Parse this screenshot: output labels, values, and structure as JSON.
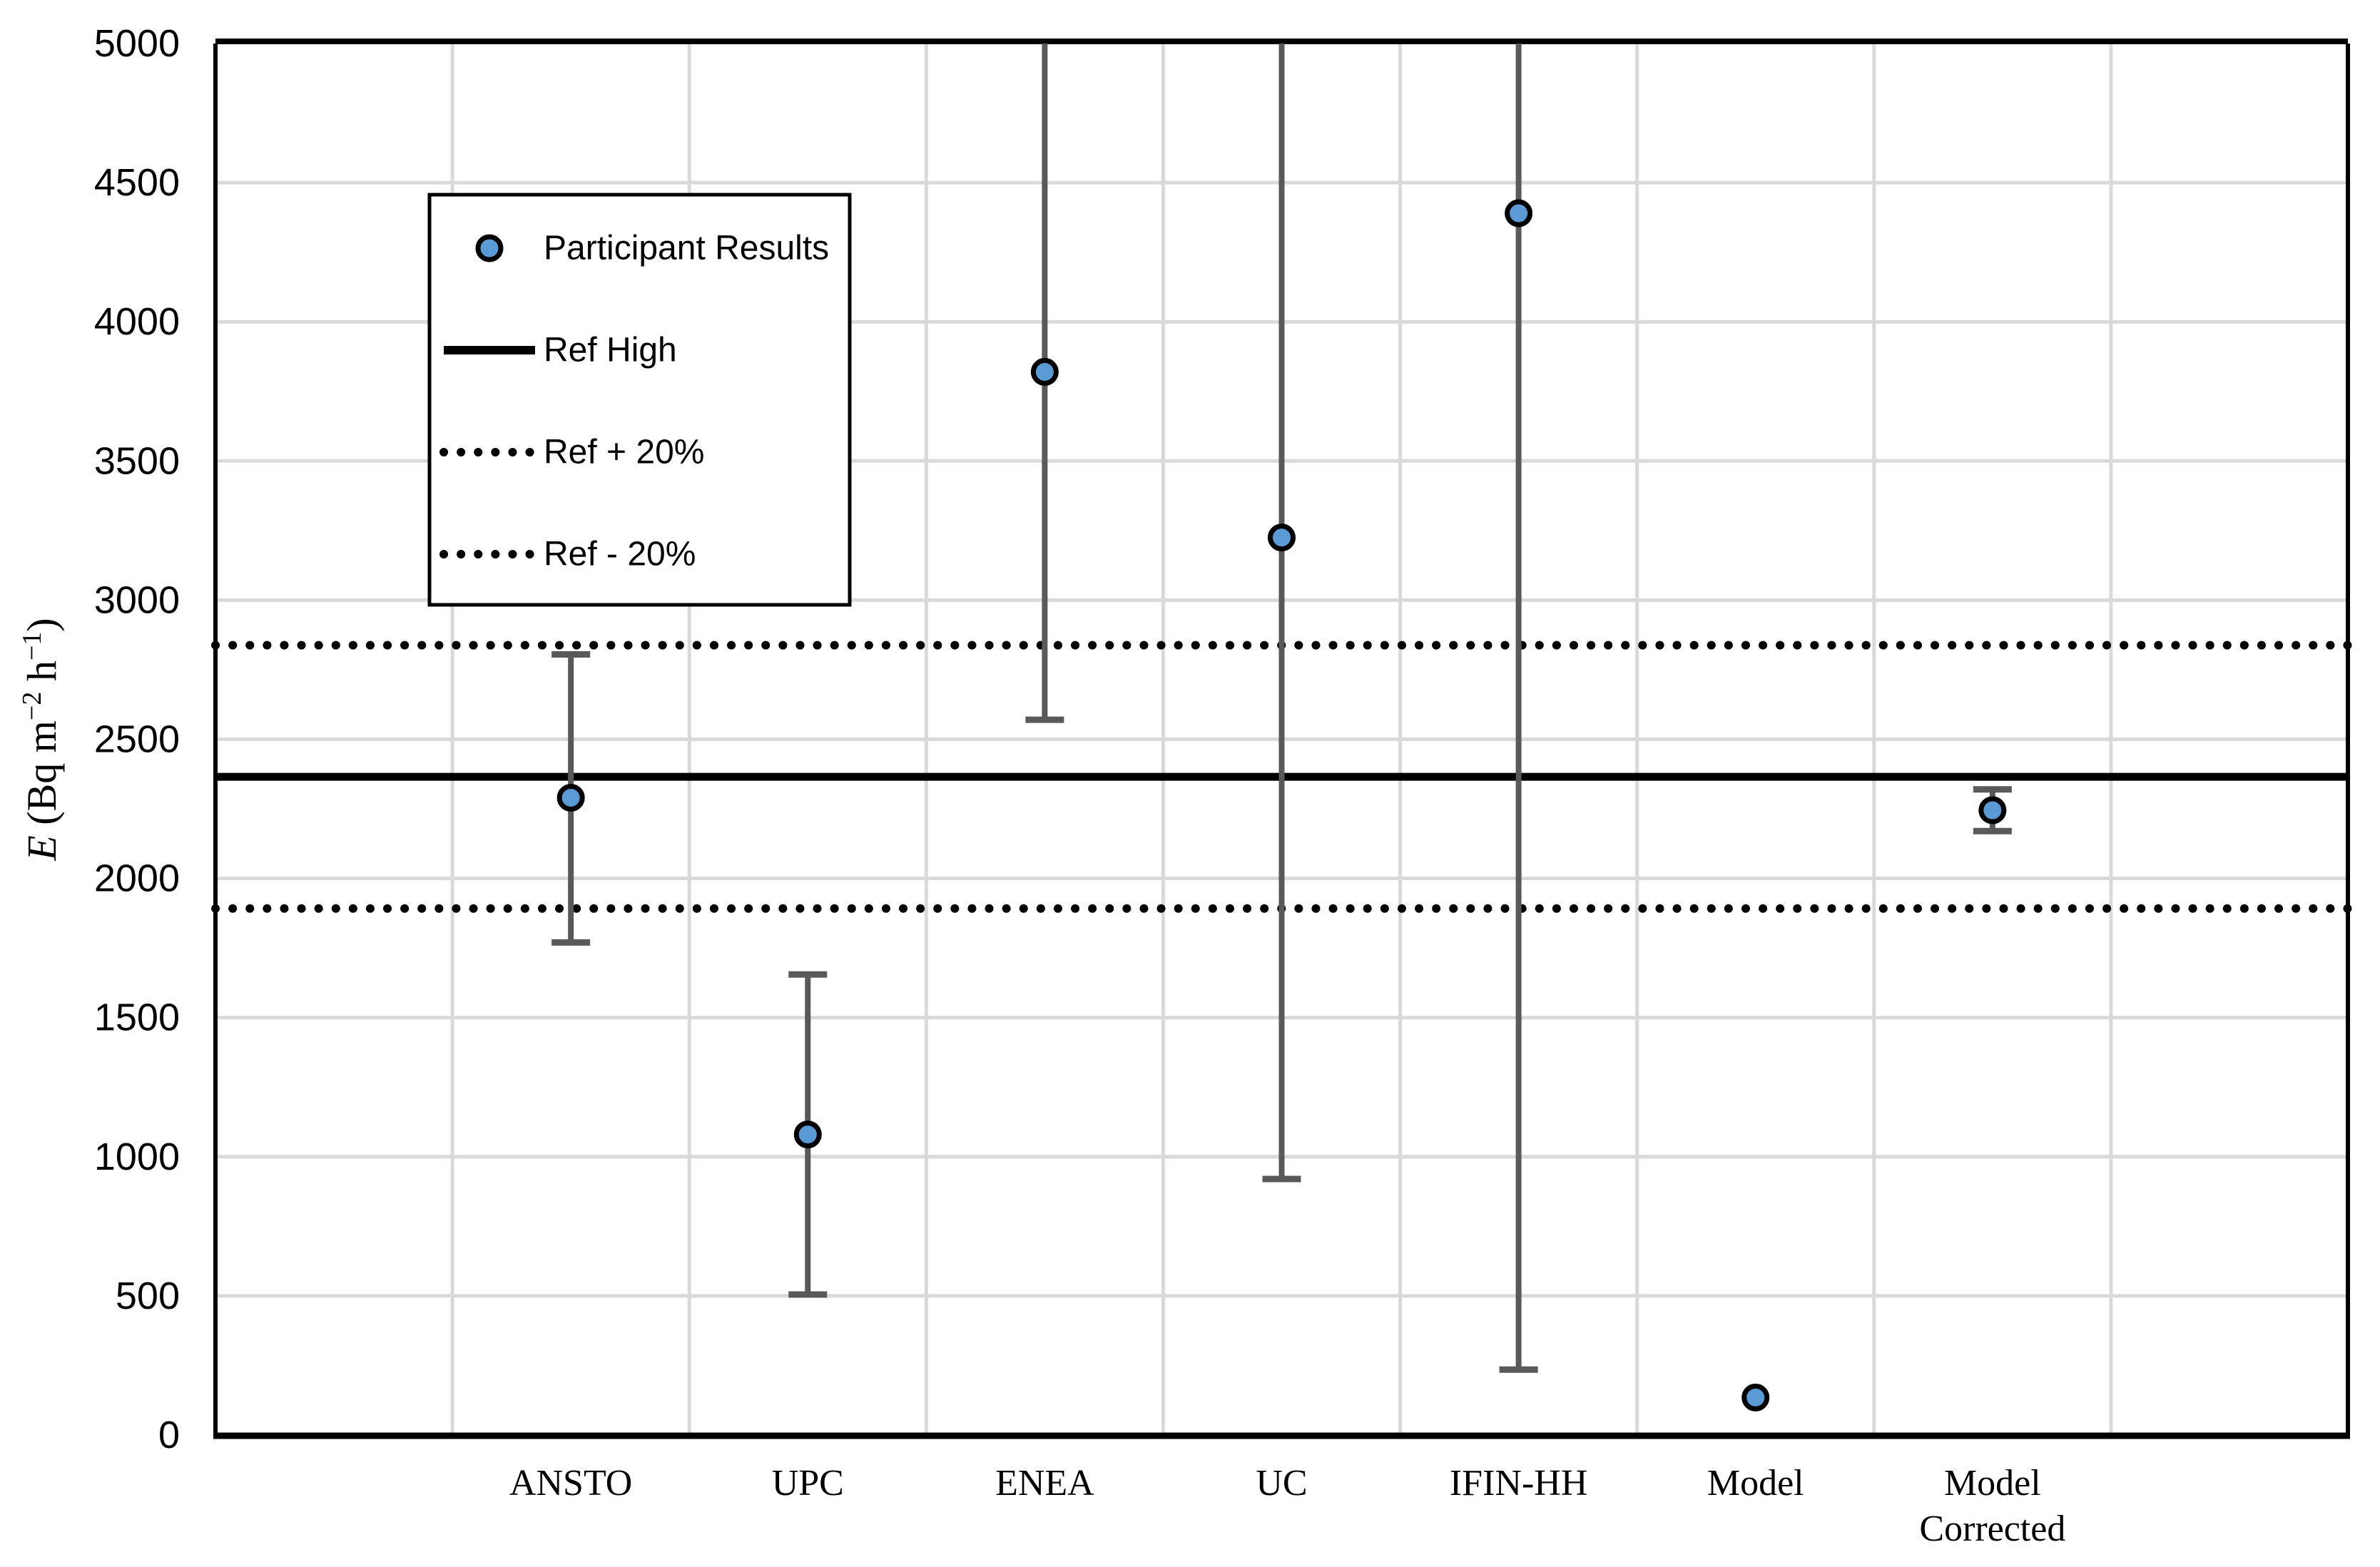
{
  "chart_data": {
    "type": "scatter",
    "title": "",
    "xlabel": "",
    "ylabel_parts": [
      {
        "t": "E",
        "italic": true
      },
      {
        "t": " (Bq m",
        "italic": false
      },
      {
        "t": "−2",
        "sup": true
      },
      {
        "t": " h",
        "italic": false
      },
      {
        "t": "−1",
        "sup": true
      },
      {
        "t": ")",
        "italic": false
      }
    ],
    "ylim": [
      0,
      5000
    ],
    "ytick_step": 500,
    "yticks": [
      "0",
      "500",
      "1000",
      "1500",
      "2000",
      "2500",
      "3000",
      "3500",
      "4000",
      "4500",
      "5000"
    ],
    "grid": "both",
    "categories": [
      "ANSTO",
      "UPC",
      "ENEA",
      "UC",
      "IFIN-HH",
      "Model",
      "Model\nCorrected"
    ],
    "series": [
      {
        "name": "Participant Results",
        "points": [
          {
            "category": "ANSTO",
            "value": 2290,
            "err_low": 1770,
            "err_high": 2805,
            "err_high_offscale": false
          },
          {
            "category": "UPC",
            "value": 1080,
            "err_low": 505,
            "err_high": 1655,
            "err_high_offscale": false
          },
          {
            "category": "ENEA",
            "value": 3820,
            "err_low": 2570,
            "err_high": null,
            "err_high_offscale": true
          },
          {
            "category": "UC",
            "value": 3225,
            "err_low": 920,
            "err_high": null,
            "err_high_offscale": true
          },
          {
            "category": "IFIN-HH",
            "value": 4390,
            "err_low": 235,
            "err_high": null,
            "err_high_offscale": true
          },
          {
            "category": "Model",
            "value": 135,
            "err_low": null,
            "err_high": null,
            "err_high_offscale": false
          },
          {
            "category": "Model\nCorrected",
            "value": 2245,
            "err_low": 2170,
            "err_high": 2320,
            "err_high_offscale": false
          }
        ]
      }
    ],
    "reference_lines": [
      {
        "label": "Ref High",
        "value": 2365,
        "style": "solid"
      },
      {
        "label": "Ref + 20%",
        "value": 2838,
        "style": "dotted"
      },
      {
        "label": "Ref - 20%",
        "value": 1892,
        "style": "dotted"
      }
    ],
    "legend": {
      "position": "upper-left-inside",
      "items": [
        {
          "label": "Participant Results",
          "sample": "marker"
        },
        {
          "label": "Ref High",
          "sample": "solid-line"
        },
        {
          "label": "Ref + 20%",
          "sample": "dotted-line"
        },
        {
          "label": "Ref - 20%",
          "sample": "dotted-line"
        }
      ]
    },
    "colors": {
      "marker_fill": "#5B9BD5",
      "marker_stroke": "#000000",
      "error_bar": "#595959",
      "gridline": "#D9D9D9",
      "axis": "#000000",
      "reference_line": "#000000",
      "background": "#FFFFFF",
      "text": "#000000"
    }
  }
}
